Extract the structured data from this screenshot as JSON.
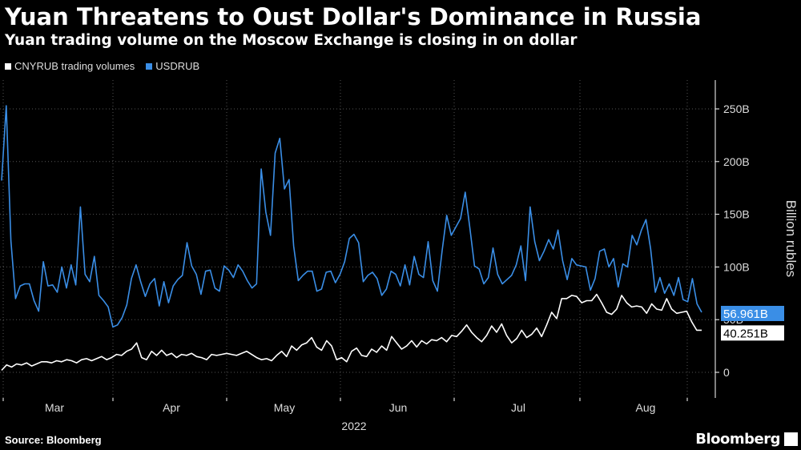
{
  "title": "Yuan Threatens to Oust Dollar's Dominance in Russia",
  "subtitle": "Yuan trading volume on the Moscow Exchange is closing in on dollar",
  "source": "Source: Bloomberg",
  "brand": "Bloomberg",
  "colors": {
    "cny": "#ffffff",
    "usd": "#3a8ee6",
    "grid": "#555555",
    "background": "#000000"
  },
  "chart_data": {
    "type": "line",
    "title": "Yuan Threatens to Oust Dollar's Dominance in Russia",
    "subtitle": "Yuan trading volume on the Moscow Exchange is closing in on dollar",
    "xlabel": "2022",
    "ylabel": "Billion rubles",
    "ylim": [
      -25,
      280
    ],
    "x_ticks": [
      "Mar",
      "Apr",
      "May",
      "Jun",
      "Jul",
      "Aug"
    ],
    "y_ticks": [
      "0",
      "50B",
      "100B",
      "150B",
      "200B",
      "250B"
    ],
    "y_tick_values": [
      0,
      50,
      100,
      150,
      200,
      250
    ],
    "legend_position": "top-left",
    "grid": true,
    "series": [
      {
        "name": "CNYRUB trading volumes",
        "last_label": "40.251B",
        "values": [
          2,
          7,
          5,
          8,
          7,
          9,
          6,
          8,
          10,
          10,
          9,
          11,
          10,
          12,
          11,
          9,
          12,
          13,
          11,
          13,
          15,
          12,
          14,
          17,
          16,
          20,
          22,
          28,
          14,
          12,
          20,
          16,
          21,
          16,
          18,
          14,
          17,
          16,
          18,
          15,
          14,
          12,
          17,
          16,
          17,
          18,
          17,
          16,
          18,
          20,
          17,
          14,
          12,
          13,
          11,
          16,
          20,
          15,
          25,
          21,
          26,
          28,
          33,
          24,
          21,
          30,
          25,
          12,
          14,
          10,
          20,
          23,
          16,
          15,
          22,
          19,
          25,
          21,
          34,
          28,
          22,
          25,
          30,
          24,
          30,
          27,
          31,
          30,
          33,
          29,
          35,
          34,
          39,
          45,
          38,
          33,
          29,
          35,
          44,
          38,
          46,
          35,
          28,
          32,
          40,
          33,
          36,
          42,
          34,
          45,
          57,
          51,
          70,
          70,
          73,
          72,
          66,
          68,
          68,
          74,
          66,
          57,
          55,
          60,
          73,
          66,
          62,
          63,
          62,
          56,
          65,
          60,
          59,
          70,
          60,
          56,
          57,
          58,
          48,
          40,
          40
        ]
      },
      {
        "name": "USDRUB",
        "last_label": "56.961B",
        "values": [
          182,
          253,
          125,
          70,
          82,
          84,
          84,
          68,
          58,
          105,
          82,
          83,
          76,
          100,
          80,
          102,
          83,
          157,
          93,
          86,
          110,
          73,
          68,
          62,
          43,
          45,
          52,
          64,
          89,
          102,
          86,
          72,
          84,
          89,
          63,
          86,
          66,
          82,
          88,
          92,
          123,
          101,
          93,
          74,
          96,
          97,
          80,
          77,
          101,
          97,
          90,
          102,
          96,
          87,
          80,
          84,
          193,
          152,
          130,
          208,
          222,
          174,
          183,
          120,
          87,
          92,
          96,
          96,
          77,
          79,
          95,
          96,
          85,
          93,
          105,
          127,
          131,
          123,
          86,
          92,
          95,
          89,
          73,
          79,
          96,
          93,
          82,
          102,
          83,
          110,
          93,
          90,
          124,
          87,
          77,
          115,
          149,
          130,
          138,
          146,
          171,
          137,
          101,
          98,
          84,
          90,
          118,
          93,
          84,
          88,
          92,
          102,
          120,
          87,
          157,
          124,
          106,
          115,
          126,
          117,
          135,
          106,
          88,
          108,
          102,
          101,
          100,
          78,
          89,
          115,
          117,
          100,
          108,
          81,
          103,
          100,
          130,
          121,
          135,
          145,
          117,
          76,
          90,
          75,
          84,
          73,
          90,
          69,
          67,
          89,
          65,
          57
        ]
      }
    ]
  }
}
